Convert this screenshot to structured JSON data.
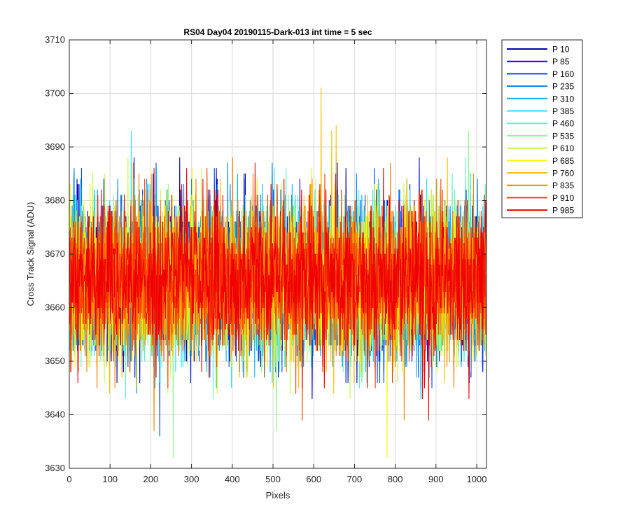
{
  "chart_data": {
    "type": "line",
    "title": "RS04 Day04 20190115-Dark-013 int time = 5 sec",
    "xlabel": "Pixels",
    "ylabel": "Cross Track Signal (ADU)",
    "xlim": [
      0,
      1024
    ],
    "ylim": [
      3630,
      3710
    ],
    "xticks": [
      0,
      100,
      200,
      300,
      400,
      500,
      600,
      700,
      800,
      900,
      1000
    ],
    "yticks": [
      3630,
      3640,
      3650,
      3660,
      3670,
      3680,
      3690,
      3700,
      3710
    ],
    "grid": true,
    "legend_position": "outside-top-right",
    "noise_model": {
      "mean": 3665,
      "stdev": 7
    },
    "series": [
      {
        "name": "P 10",
        "color": "#0000a8"
      },
      {
        "name": "P 85",
        "color": "#0010d8"
      },
      {
        "name": "P 160",
        "color": "#0048f0"
      },
      {
        "name": "P 235",
        "color": "#0088f0"
      },
      {
        "name": "P 310",
        "color": "#00b8f8"
      },
      {
        "name": "P 385",
        "color": "#18e8f0"
      },
      {
        "name": "P 460",
        "color": "#60f0c8"
      },
      {
        "name": "P 535",
        "color": "#90f890"
      },
      {
        "name": "P 610",
        "color": "#c8f840"
      },
      {
        "name": "P 685",
        "color": "#f8f800"
      },
      {
        "name": "P 760",
        "color": "#f8c000"
      },
      {
        "name": "P 835",
        "color": "#f88000"
      },
      {
        "name": "P 910",
        "color": "#f84000"
      },
      {
        "name": "P 985",
        "color": "#f00000"
      }
    ],
    "notable_points": [
      {
        "series": "P 760",
        "x": 618,
        "y": 3701
      },
      {
        "series": "P 760",
        "x": 655,
        "y": 3694
      },
      {
        "series": "P 760",
        "x": 644,
        "y": 3693
      },
      {
        "series": "P 535",
        "x": 980,
        "y": 3693
      },
      {
        "series": "P 385",
        "x": 152,
        "y": 3693
      },
      {
        "series": "P 535",
        "x": 255,
        "y": 3632
      },
      {
        "series": "P 685",
        "x": 780,
        "y": 3632
      },
      {
        "series": "P 835",
        "x": 208,
        "y": 3637
      },
      {
        "series": "P 535",
        "x": 508,
        "y": 3637
      },
      {
        "series": "P 910",
        "x": 572,
        "y": 3639
      },
      {
        "series": "P 985",
        "x": 882,
        "y": 3639
      },
      {
        "series": "P 835",
        "x": 822,
        "y": 3639
      },
      {
        "series": "P 160",
        "x": 222,
        "y": 3636
      }
    ]
  }
}
